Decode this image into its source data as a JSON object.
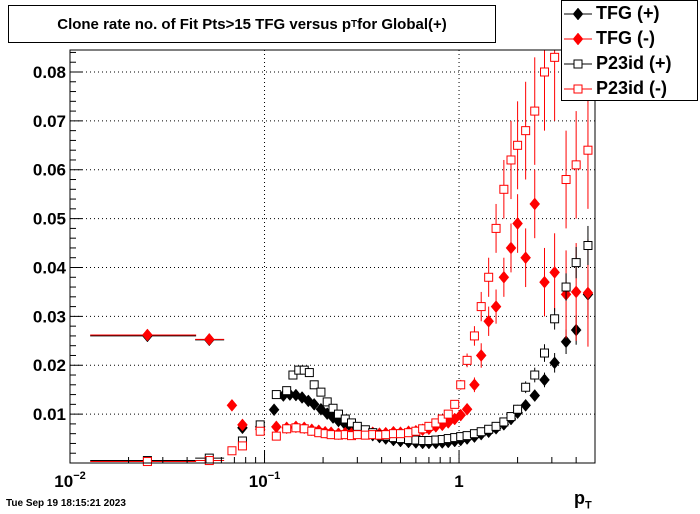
{
  "title_main": "Clone rate no. of Fit Pts>15 TFG versus p",
  "title_sub": "T",
  "title_tail": " for Global(+)",
  "timestamp": "Tue Sep 19 18:15:21 2023",
  "xaxis_title_main": "p",
  "xaxis_title_sub": "T",
  "chart_data": {
    "type": "scatter",
    "x_scale": "log",
    "xlim": [
      0.01,
      5.0
    ],
    "ylim": [
      0.0,
      0.0845
    ],
    "x_tick_labels": [
      {
        "value": 0.01,
        "base": "10",
        "exp": "−2"
      },
      {
        "value": 0.1,
        "base": "10",
        "exp": "−1"
      },
      {
        "value": 1,
        "base": "1",
        "exp": ""
      }
    ],
    "y_ticks": [
      0.01,
      0.02,
      0.03,
      0.04,
      0.05,
      0.06,
      0.07,
      0.08
    ],
    "y_tick_labels": [
      "0.01",
      "0.02",
      "0.03",
      "0.04",
      "0.05",
      "0.06",
      "0.07",
      "0.08"
    ],
    "grid": true,
    "legend_position": "top-right",
    "series": [
      {
        "name": "TFG (+)",
        "color": "#000000",
        "marker": "filled-diamond",
        "points": [
          [
            0.025,
            0.026,
            0.0
          ],
          [
            0.052,
            0.0252,
            0.0005
          ],
          [
            0.077,
            0.0072,
            0.0008
          ],
          [
            0.095,
            0.0074,
            0.0006
          ],
          [
            0.112,
            0.0109,
            0.0005
          ],
          [
            0.125,
            0.0138,
            0.0004
          ],
          [
            0.135,
            0.014,
            0.0004
          ],
          [
            0.145,
            0.0139,
            0.0004
          ],
          [
            0.156,
            0.0134,
            0.0004
          ],
          [
            0.168,
            0.0127,
            0.0003
          ],
          [
            0.18,
            0.012,
            0.0003
          ],
          [
            0.195,
            0.011,
            0.0003
          ],
          [
            0.21,
            0.0101,
            0.0003
          ],
          [
            0.225,
            0.0093,
            0.0003
          ],
          [
            0.24,
            0.0086,
            0.0003
          ],
          [
            0.26,
            0.0079,
            0.0003
          ],
          [
            0.28,
            0.0072,
            0.0003
          ],
          [
            0.3,
            0.0067,
            0.0003
          ],
          [
            0.33,
            0.0061,
            0.0003
          ],
          [
            0.36,
            0.0057,
            0.0003
          ],
          [
            0.39,
            0.0053,
            0.0003
          ],
          [
            0.42,
            0.005,
            0.0003
          ],
          [
            0.46,
            0.0047,
            0.0003
          ],
          [
            0.5,
            0.0045,
            0.0003
          ],
          [
            0.55,
            0.0043,
            0.0003
          ],
          [
            0.6,
            0.0042,
            0.0003
          ],
          [
            0.65,
            0.0041,
            0.0003
          ],
          [
            0.7,
            0.0041,
            0.0003
          ],
          [
            0.76,
            0.0041,
            0.0003
          ],
          [
            0.82,
            0.0042,
            0.0003
          ],
          [
            0.88,
            0.0043,
            0.0003
          ],
          [
            0.95,
            0.0045,
            0.0004
          ],
          [
            1.02,
            0.0047,
            0.0004
          ],
          [
            1.1,
            0.005,
            0.0004
          ],
          [
            1.2,
            0.0054,
            0.0004
          ],
          [
            1.3,
            0.0059,
            0.0005
          ],
          [
            1.42,
            0.0064,
            0.0005
          ],
          [
            1.55,
            0.0071,
            0.0006
          ],
          [
            1.7,
            0.0079,
            0.0007
          ],
          [
            1.85,
            0.009,
            0.0008
          ],
          [
            2.0,
            0.0103,
            0.0009
          ],
          [
            2.2,
            0.0118,
            0.001
          ],
          [
            2.45,
            0.0138,
            0.0012
          ],
          [
            2.75,
            0.017,
            0.0015
          ],
          [
            3.1,
            0.0205,
            0.002
          ],
          [
            3.55,
            0.0248,
            0.0025
          ],
          [
            4.0,
            0.0272,
            0.003
          ],
          [
            4.6,
            0.0345,
            0.005
          ]
        ]
      },
      {
        "name": "TFG (-)",
        "color": "#ff0000",
        "marker": "filled-diamond",
        "points": [
          [
            0.025,
            0.0262,
            0.0
          ],
          [
            0.052,
            0.0253,
            0.0005
          ],
          [
            0.068,
            0.0118,
            0.0007
          ],
          [
            0.077,
            0.0078,
            0.0006
          ],
          [
            0.095,
            0.0069,
            0.0005
          ],
          [
            0.115,
            0.0074,
            0.0004
          ],
          [
            0.13,
            0.0072,
            0.0004
          ],
          [
            0.145,
            0.0074,
            0.0004
          ],
          [
            0.16,
            0.0072,
            0.0004
          ],
          [
            0.175,
            0.0068,
            0.0003
          ],
          [
            0.19,
            0.0066,
            0.0003
          ],
          [
            0.205,
            0.0063,
            0.0003
          ],
          [
            0.22,
            0.0062,
            0.0003
          ],
          [
            0.24,
            0.006,
            0.0003
          ],
          [
            0.26,
            0.0061,
            0.0003
          ],
          [
            0.28,
            0.006,
            0.0003
          ],
          [
            0.3,
            0.0062,
            0.0003
          ],
          [
            0.33,
            0.0061,
            0.0003
          ],
          [
            0.36,
            0.0062,
            0.0003
          ],
          [
            0.39,
            0.006,
            0.0003
          ],
          [
            0.42,
            0.0061,
            0.0003
          ],
          [
            0.46,
            0.0063,
            0.0003
          ],
          [
            0.5,
            0.0062,
            0.0003
          ],
          [
            0.55,
            0.0064,
            0.0003
          ],
          [
            0.6,
            0.0065,
            0.0004
          ],
          [
            0.65,
            0.0068,
            0.0004
          ],
          [
            0.7,
            0.007,
            0.0004
          ],
          [
            0.76,
            0.0075,
            0.0005
          ],
          [
            0.82,
            0.0078,
            0.0005
          ],
          [
            0.88,
            0.0083,
            0.0006
          ],
          [
            0.95,
            0.009,
            0.0007
          ],
          [
            1.02,
            0.0098,
            0.0008
          ],
          [
            1.1,
            0.011,
            0.001
          ],
          [
            1.2,
            0.016,
            0.0015
          ],
          [
            1.3,
            0.022,
            0.0025
          ],
          [
            1.42,
            0.029,
            0.003
          ],
          [
            1.55,
            0.032,
            0.0035
          ],
          [
            1.7,
            0.038,
            0.004
          ],
          [
            1.85,
            0.044,
            0.005
          ],
          [
            2.0,
            0.049,
            0.006
          ],
          [
            2.2,
            0.042,
            0.006
          ],
          [
            2.45,
            0.053,
            0.007
          ],
          [
            2.75,
            0.037,
            0.007
          ],
          [
            3.1,
            0.039,
            0.008
          ],
          [
            3.55,
            0.0345,
            0.009
          ],
          [
            4.0,
            0.035,
            0.01
          ],
          [
            4.6,
            0.0348,
            0.011
          ]
        ]
      },
      {
        "name": "P23id (+)",
        "color": "#000000",
        "marker": "open-square",
        "points": [
          [
            0.025,
            0.0005,
            0.0
          ],
          [
            0.052,
            0.001,
            0.0004
          ],
          [
            0.077,
            0.0045,
            0.0006
          ],
          [
            0.095,
            0.0078,
            0.0006
          ],
          [
            0.115,
            0.014,
            0.0006
          ],
          [
            0.13,
            0.0148,
            0.0005
          ],
          [
            0.14,
            0.018,
            0.0005
          ],
          [
            0.15,
            0.019,
            0.0005
          ],
          [
            0.16,
            0.019,
            0.0005
          ],
          [
            0.17,
            0.0185,
            0.0005
          ],
          [
            0.18,
            0.016,
            0.0004
          ],
          [
            0.195,
            0.0145,
            0.0004
          ],
          [
            0.21,
            0.0125,
            0.0004
          ],
          [
            0.225,
            0.0112,
            0.0004
          ],
          [
            0.24,
            0.01,
            0.0004
          ],
          [
            0.26,
            0.009,
            0.0003
          ],
          [
            0.28,
            0.0082,
            0.0003
          ],
          [
            0.3,
            0.0075,
            0.0003
          ],
          [
            0.33,
            0.0068,
            0.0003
          ],
          [
            0.36,
            0.0062,
            0.0003
          ],
          [
            0.39,
            0.0058,
            0.0003
          ],
          [
            0.42,
            0.0055,
            0.0003
          ],
          [
            0.46,
            0.0052,
            0.0003
          ],
          [
            0.5,
            0.005,
            0.0003
          ],
          [
            0.55,
            0.0048,
            0.0003
          ],
          [
            0.6,
            0.0047,
            0.0003
          ],
          [
            0.65,
            0.0046,
            0.0003
          ],
          [
            0.7,
            0.0046,
            0.0003
          ],
          [
            0.76,
            0.0047,
            0.0003
          ],
          [
            0.82,
            0.0048,
            0.0003
          ],
          [
            0.88,
            0.005,
            0.0003
          ],
          [
            0.95,
            0.0052,
            0.0004
          ],
          [
            1.02,
            0.0054,
            0.0004
          ],
          [
            1.1,
            0.0056,
            0.0004
          ],
          [
            1.2,
            0.006,
            0.0004
          ],
          [
            1.3,
            0.0064,
            0.0005
          ],
          [
            1.42,
            0.0069,
            0.0005
          ],
          [
            1.55,
            0.0075,
            0.0006
          ],
          [
            1.7,
            0.0084,
            0.0007
          ],
          [
            1.85,
            0.0095,
            0.0008
          ],
          [
            2.0,
            0.011,
            0.0009
          ],
          [
            2.2,
            0.0155,
            0.0012
          ],
          [
            2.45,
            0.018,
            0.0015
          ],
          [
            2.75,
            0.0225,
            0.0018
          ],
          [
            3.1,
            0.0295,
            0.0022
          ],
          [
            3.55,
            0.036,
            0.0028
          ],
          [
            4.0,
            0.041,
            0.0032
          ],
          [
            4.6,
            0.0445,
            0.004
          ]
        ]
      },
      {
        "name": "P23id (-)",
        "color": "#ff0000",
        "marker": "open-square",
        "points": [
          [
            0.025,
            0.0003,
            0.0
          ],
          [
            0.052,
            0.0005,
            0.0004
          ],
          [
            0.068,
            0.0025,
            0.0006
          ],
          [
            0.077,
            0.0035,
            0.0006
          ],
          [
            0.095,
            0.0065,
            0.0005
          ],
          [
            0.115,
            0.0055,
            0.0004
          ],
          [
            0.13,
            0.007,
            0.0004
          ],
          [
            0.145,
            0.0072,
            0.0004
          ],
          [
            0.16,
            0.007,
            0.0004
          ],
          [
            0.175,
            0.0065,
            0.0003
          ],
          [
            0.19,
            0.0062,
            0.0003
          ],
          [
            0.205,
            0.006,
            0.0003
          ],
          [
            0.22,
            0.0058,
            0.0003
          ],
          [
            0.24,
            0.0057,
            0.0003
          ],
          [
            0.26,
            0.0058,
            0.0003
          ],
          [
            0.28,
            0.0056,
            0.0003
          ],
          [
            0.3,
            0.0058,
            0.0003
          ],
          [
            0.33,
            0.0057,
            0.0003
          ],
          [
            0.36,
            0.0058,
            0.0003
          ],
          [
            0.39,
            0.0057,
            0.0003
          ],
          [
            0.42,
            0.0058,
            0.0003
          ],
          [
            0.46,
            0.006,
            0.0003
          ],
          [
            0.5,
            0.006,
            0.0003
          ],
          [
            0.55,
            0.0062,
            0.0003
          ],
          [
            0.6,
            0.0065,
            0.0004
          ],
          [
            0.65,
            0.007,
            0.0004
          ],
          [
            0.7,
            0.0075,
            0.0004
          ],
          [
            0.76,
            0.0082,
            0.0005
          ],
          [
            0.82,
            0.009,
            0.0005
          ],
          [
            0.88,
            0.01,
            0.0006
          ],
          [
            0.95,
            0.012,
            0.0007
          ],
          [
            1.02,
            0.016,
            0.001
          ],
          [
            1.1,
            0.021,
            0.0014
          ],
          [
            1.2,
            0.026,
            0.002
          ],
          [
            1.3,
            0.032,
            0.003
          ],
          [
            1.42,
            0.038,
            0.004
          ],
          [
            1.55,
            0.048,
            0.005
          ],
          [
            1.7,
            0.056,
            0.006
          ],
          [
            1.85,
            0.062,
            0.008
          ],
          [
            2.0,
            0.065,
            0.009
          ],
          [
            2.2,
            0.068,
            0.01
          ],
          [
            2.45,
            0.072,
            0.011
          ],
          [
            2.75,
            0.08,
            0.012
          ],
          [
            3.1,
            0.083,
            0.013
          ],
          [
            3.55,
            0.058,
            0.01
          ],
          [
            4.0,
            0.061,
            0.011
          ],
          [
            4.6,
            0.064,
            0.012
          ]
        ]
      }
    ]
  }
}
